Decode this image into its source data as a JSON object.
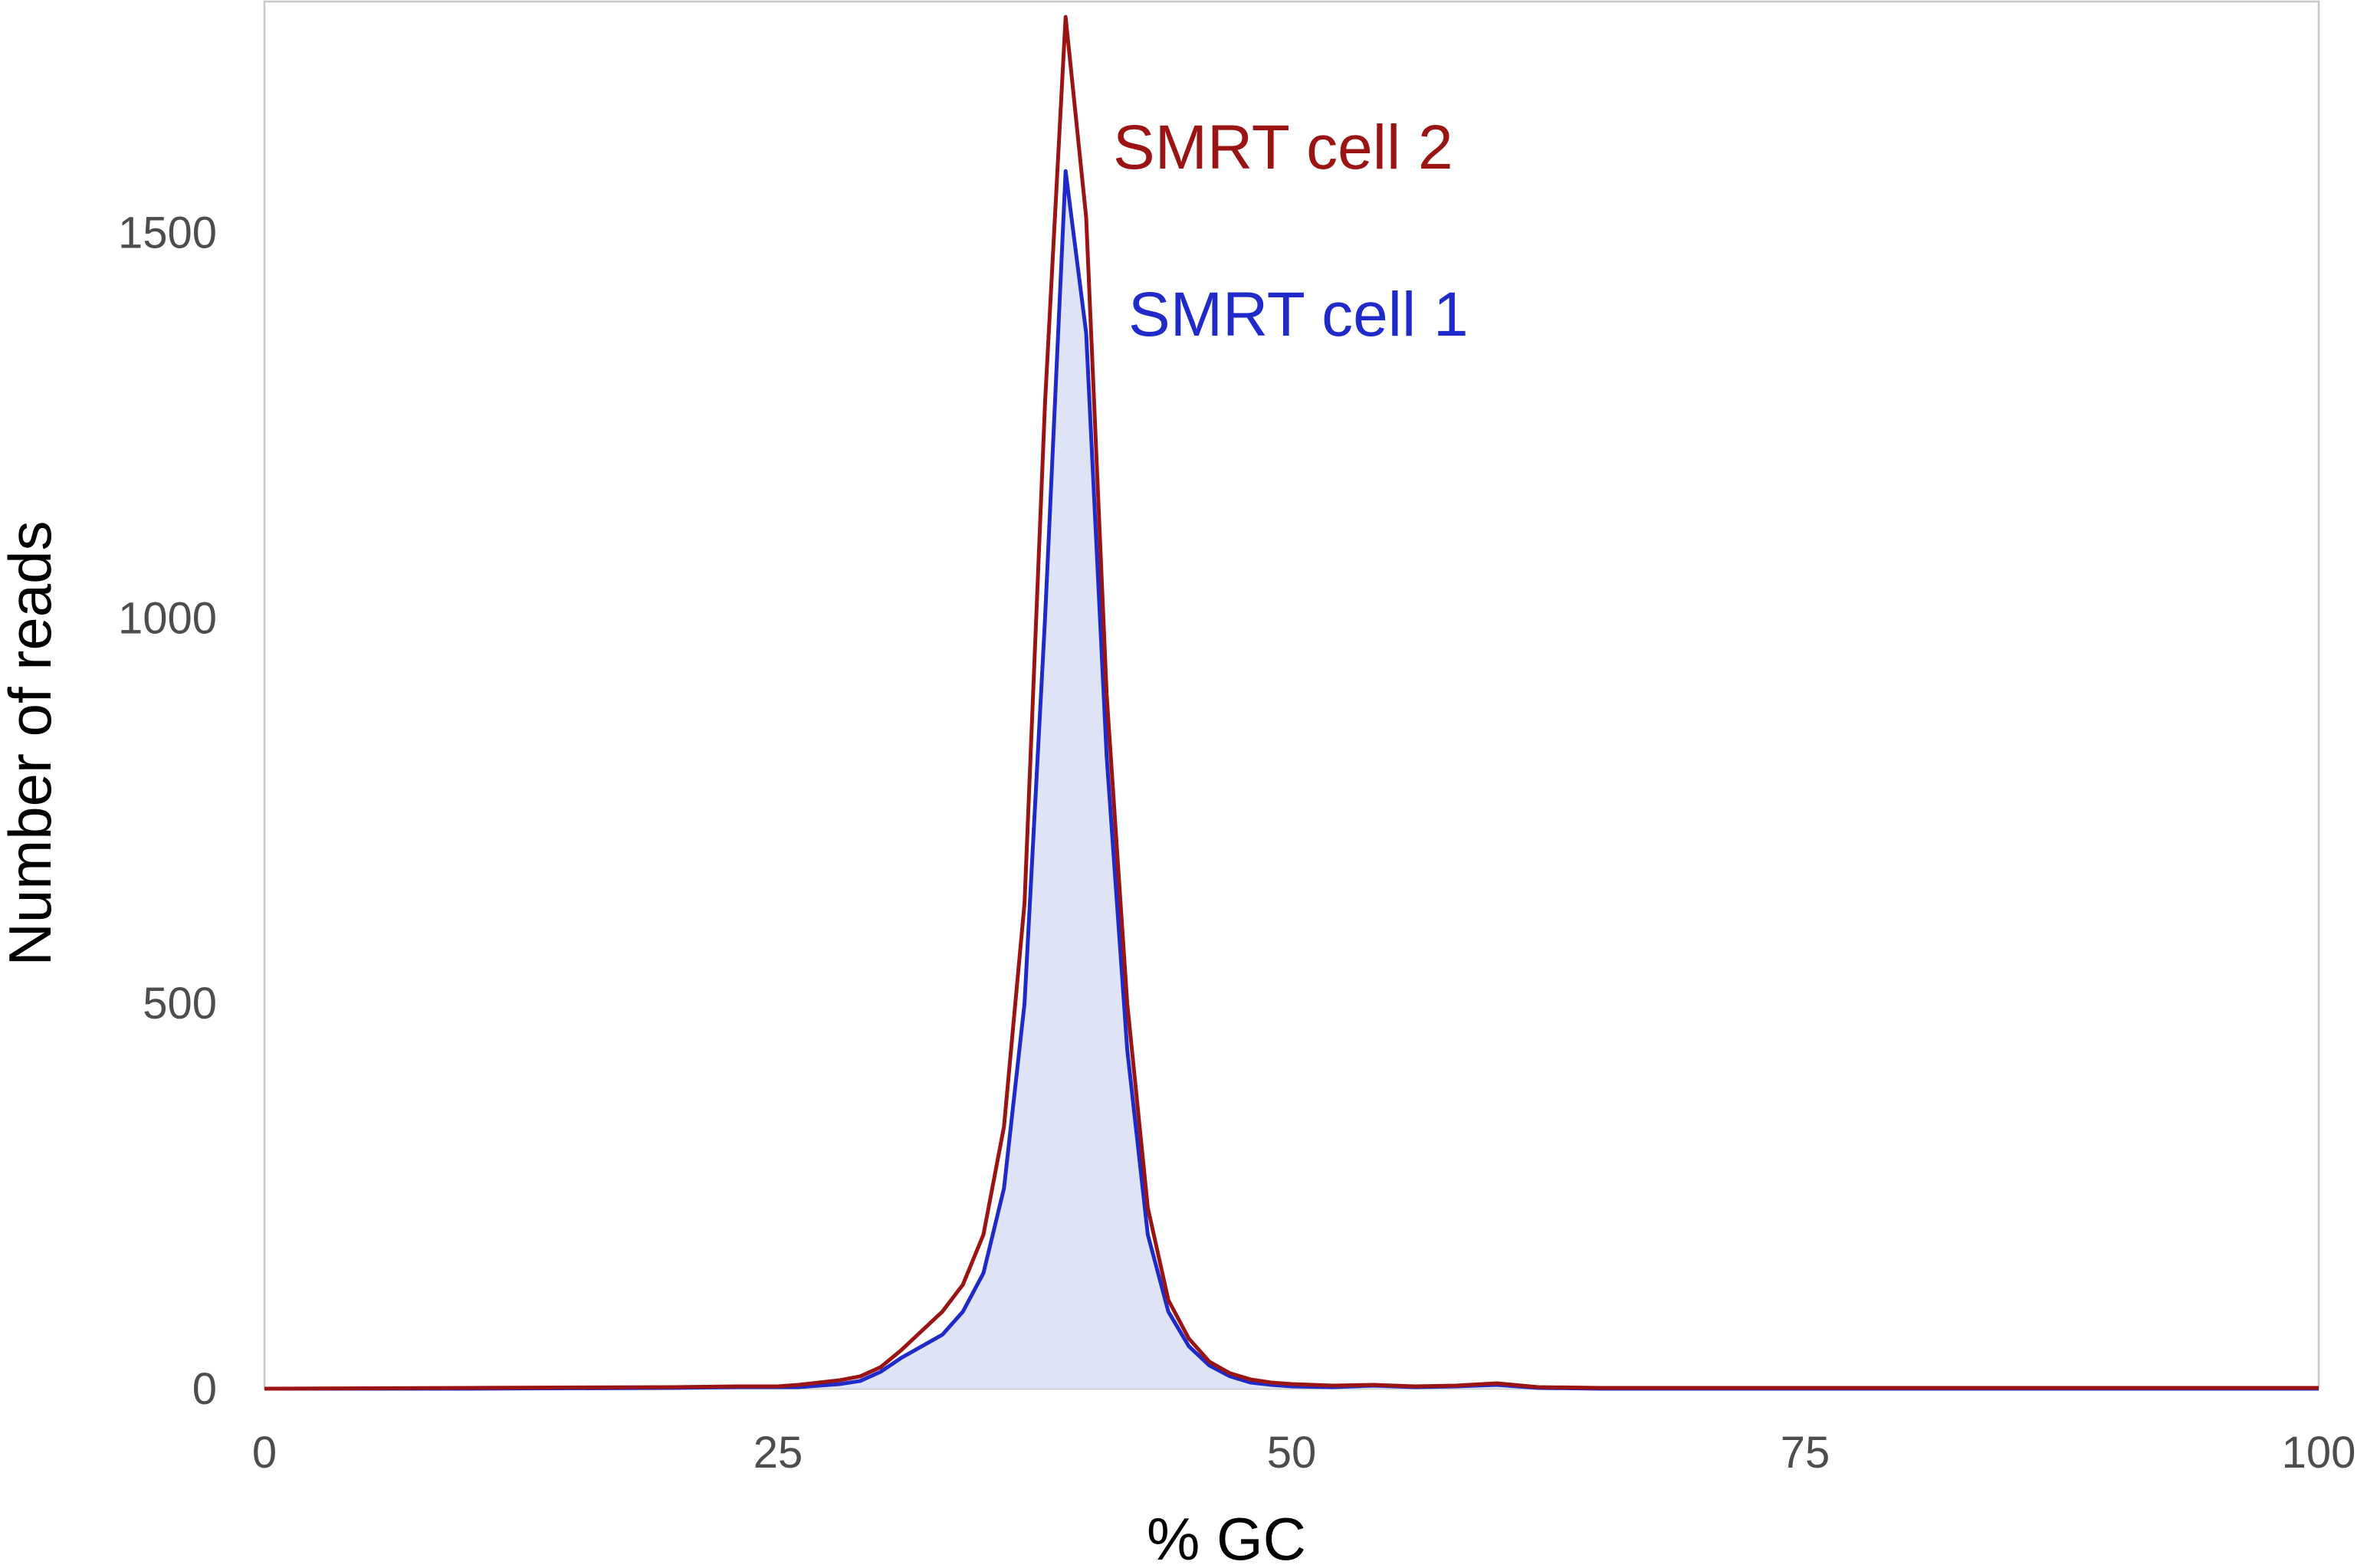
{
  "chart_data": {
    "type": "area",
    "title": "",
    "xlabel": "% GC",
    "ylabel": "Number of reads",
    "xlim": [
      0,
      100
    ],
    "ylim": [
      0,
      1800
    ],
    "x_ticks": [
      0,
      25,
      50,
      75,
      100
    ],
    "y_ticks": [
      0,
      500,
      1000,
      1500
    ],
    "grid": false,
    "legend": "none (series labelled directly near peak)",
    "series": [
      {
        "name": "SMRT cell 1",
        "color": "#1f2ac8",
        "fill": "#dfe3f6",
        "filled": true,
        "points": [
          [
            0,
            0
          ],
          [
            10,
            0
          ],
          [
            20,
            1
          ],
          [
            23,
            2
          ],
          [
            25,
            2
          ],
          [
            26,
            2
          ],
          [
            27,
            4
          ],
          [
            28,
            6
          ],
          [
            29,
            10
          ],
          [
            30,
            22
          ],
          [
            31,
            40
          ],
          [
            32,
            55
          ],
          [
            33,
            70
          ],
          [
            34,
            100
          ],
          [
            35,
            150
          ],
          [
            36,
            260
          ],
          [
            37,
            500
          ],
          [
            38,
            1000
          ],
          [
            39,
            1580
          ],
          [
            40,
            1370
          ],
          [
            41,
            820
          ],
          [
            42,
            440
          ],
          [
            43,
            200
          ],
          [
            44,
            100
          ],
          [
            45,
            55
          ],
          [
            46,
            30
          ],
          [
            47,
            16
          ],
          [
            48,
            8
          ],
          [
            49,
            5
          ],
          [
            50,
            3
          ],
          [
            52,
            2
          ],
          [
            54,
            4
          ],
          [
            56,
            2
          ],
          [
            58,
            3
          ],
          [
            60,
            5
          ],
          [
            62,
            1
          ],
          [
            65,
            0
          ],
          [
            75,
            0
          ],
          [
            100,
            0
          ]
        ]
      },
      {
        "name": "SMRT cell 2",
        "color": "#9b1414",
        "filled": false,
        "points": [
          [
            0,
            0
          ],
          [
            10,
            1
          ],
          [
            20,
            2
          ],
          [
            23,
            3
          ],
          [
            25,
            3
          ],
          [
            26,
            5
          ],
          [
            27,
            8
          ],
          [
            28,
            11
          ],
          [
            29,
            16
          ],
          [
            30,
            28
          ],
          [
            31,
            50
          ],
          [
            32,
            75
          ],
          [
            33,
            100
          ],
          [
            34,
            135
          ],
          [
            35,
            200
          ],
          [
            36,
            340
          ],
          [
            37,
            630
          ],
          [
            38,
            1280
          ],
          [
            39,
            1780
          ],
          [
            40,
            1520
          ],
          [
            41,
            900
          ],
          [
            42,
            500
          ],
          [
            43,
            235
          ],
          [
            44,
            115
          ],
          [
            45,
            65
          ],
          [
            46,
            35
          ],
          [
            47,
            20
          ],
          [
            48,
            12
          ],
          [
            49,
            8
          ],
          [
            50,
            6
          ],
          [
            52,
            4
          ],
          [
            54,
            5
          ],
          [
            56,
            3
          ],
          [
            58,
            4
          ],
          [
            60,
            7
          ],
          [
            62,
            2
          ],
          [
            65,
            1
          ],
          [
            75,
            1
          ],
          [
            100,
            1
          ]
        ]
      }
    ]
  }
}
